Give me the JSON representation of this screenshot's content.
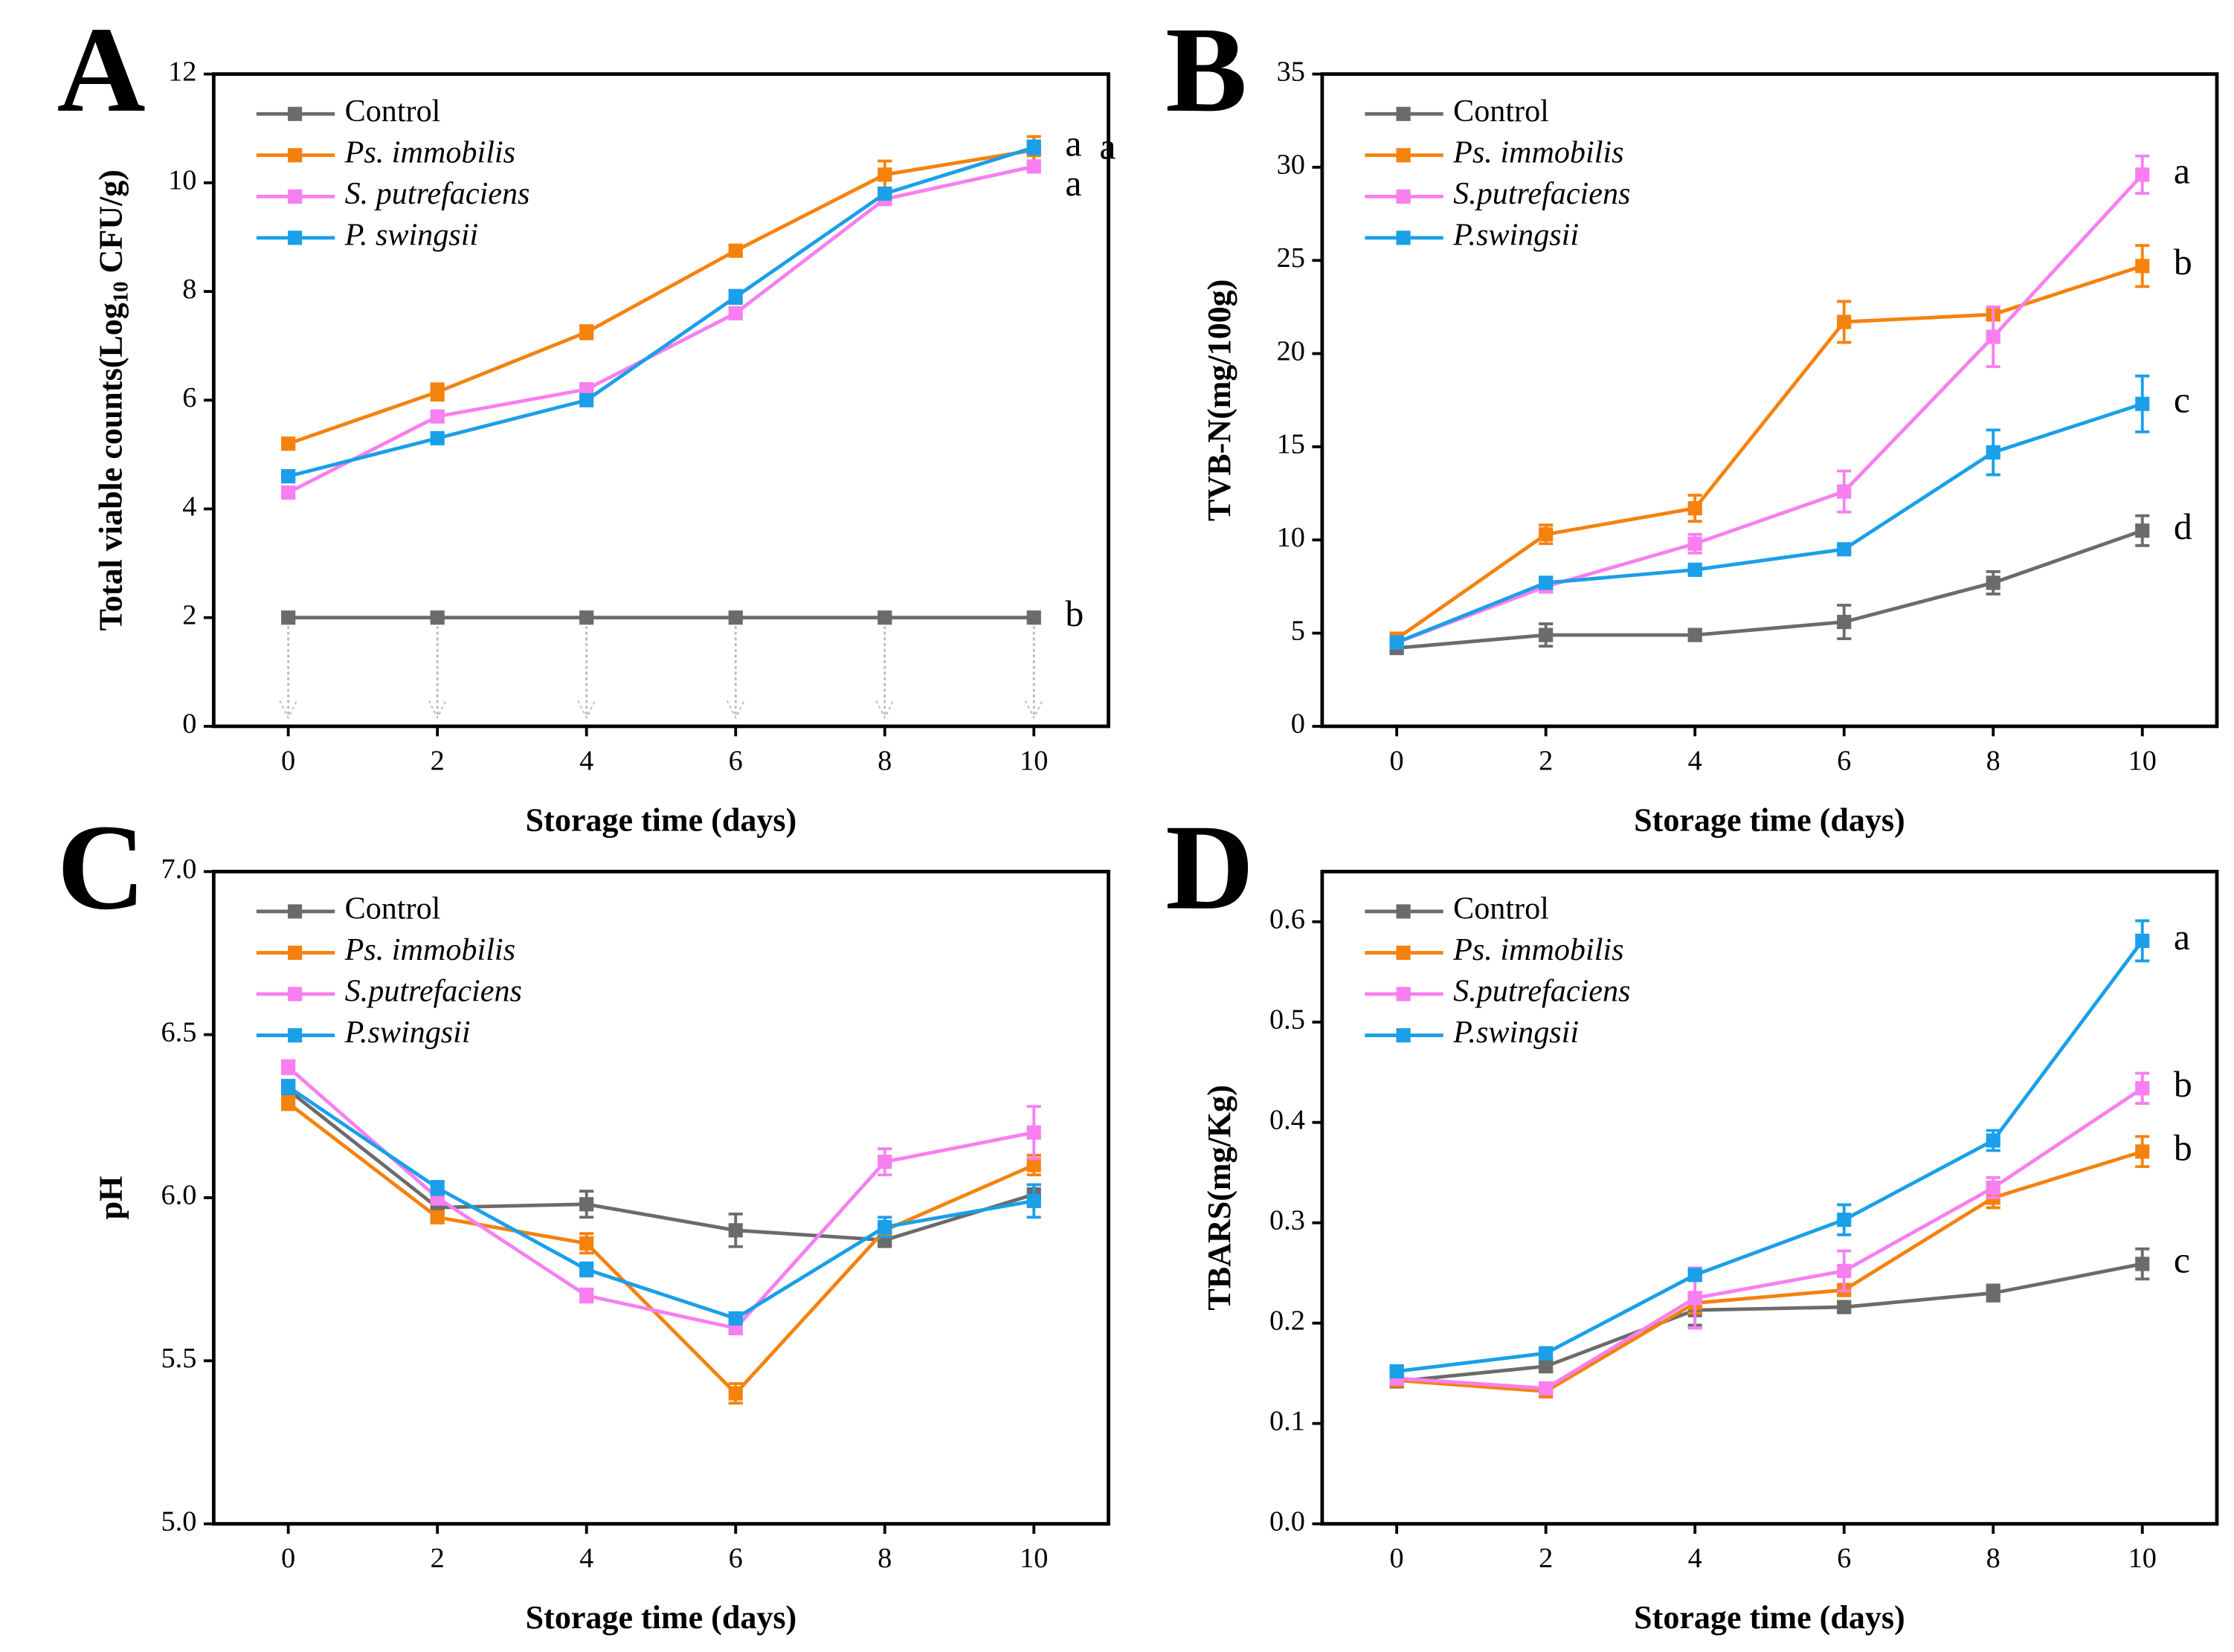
{
  "chart_data": [
    {
      "type": "line",
      "label": "A",
      "xlabel": "Storage time (days)",
      "ylabel": "Total viable counts(Log",
      "ylabel_sub": "10",
      "ylabel_end": " CFU/g)",
      "x": [
        0,
        2,
        4,
        6,
        8,
        10
      ],
      "xlim": [
        -1,
        11
      ],
      "xticks": [
        0,
        2,
        4,
        6,
        8,
        10
      ],
      "ylim": [
        0,
        12
      ],
      "yticks": [
        0,
        2,
        4,
        6,
        8,
        10,
        12
      ],
      "series": [
        {
          "name": "Control",
          "color": "#6b6b6b",
          "values": [
            2,
            2,
            2,
            2,
            2,
            2
          ],
          "errors": [
            0.02,
            0.02,
            0.02,
            0.02,
            0.02,
            0.02
          ],
          "letter": "b"
        },
        {
          "name": "Ps. immobilis",
          "color": "#f5820d",
          "values": [
            5.2,
            6.15,
            7.25,
            8.75,
            10.15,
            10.6
          ],
          "errors": [
            0.05,
            0.15,
            0.12,
            0.08,
            0.25,
            0.25
          ],
          "letter": "a"
        },
        {
          "name": "S. putrefaciens",
          "color": "#f77ff0",
          "values": [
            4.3,
            5.7,
            6.2,
            7.6,
            9.7,
            10.3
          ],
          "errors": [
            0.08,
            0.08,
            0.08,
            0.1,
            0.1,
            0.1
          ],
          "letter": "a"
        },
        {
          "name": "P. swingsii",
          "color": "#1a9fe8",
          "values": [
            4.6,
            5.3,
            6.0,
            7.9,
            9.8,
            10.65
          ],
          "errors": [
            0.05,
            0.05,
            0.05,
            0.12,
            0.1,
            0.12
          ],
          "letter": "a"
        }
      ]
    },
    {
      "type": "line",
      "label": "B",
      "xlabel": "Storage time (days)",
      "ylabel": "TVB-N(mg/100g)",
      "x": [
        0,
        2,
        4,
        6,
        8,
        10
      ],
      "xlim": [
        -1,
        11
      ],
      "xticks": [
        0,
        2,
        4,
        6,
        8,
        10
      ],
      "ylim": [
        0,
        35
      ],
      "yticks": [
        0,
        5,
        10,
        15,
        20,
        25,
        30,
        35
      ],
      "series": [
        {
          "name": "Control",
          "color": "#6b6b6b",
          "values": [
            4.2,
            4.9,
            4.9,
            5.6,
            7.7,
            10.5
          ],
          "errors": [
            0.2,
            0.6,
            0.3,
            0.9,
            0.6,
            0.8
          ],
          "letter": "d"
        },
        {
          "name": "Ps. immobilis",
          "color": "#f5820d",
          "values": [
            4.7,
            10.3,
            11.7,
            21.7,
            22.1,
            24.7
          ],
          "errors": [
            0.2,
            0.5,
            0.7,
            1.1,
            0.3,
            1.1
          ],
          "letter": "b"
        },
        {
          "name": "S.putrefaciens",
          "color": "#f77ff0",
          "values": [
            4.5,
            7.5,
            9.8,
            12.6,
            20.9,
            29.6
          ],
          "errors": [
            0.2,
            0.3,
            0.5,
            1.1,
            1.6,
            1.0
          ],
          "letter": "a"
        },
        {
          "name": "P.swingsii",
          "color": "#1a9fe8",
          "values": [
            4.5,
            7.7,
            8.4,
            9.5,
            14.7,
            17.3
          ],
          "errors": [
            0.2,
            0.3,
            0.2,
            0.2,
            1.2,
            1.5
          ],
          "letter": "c"
        }
      ]
    },
    {
      "type": "line",
      "label": "C",
      "xlabel": "Storage time (days)",
      "ylabel": "pH",
      "x": [
        0,
        2,
        4,
        6,
        8,
        10
      ],
      "xlim": [
        -1,
        11
      ],
      "xticks": [
        0,
        2,
        4,
        6,
        8,
        10
      ],
      "ylim": [
        5,
        7
      ],
      "yticks": [
        {
          "value": 5,
          "label": "5.0"
        },
        5.5,
        {
          "value": 6,
          "label": "6.0"
        },
        6.5,
        {
          "value": 7,
          "label": "7.0"
        }
      ],
      "series": [
        {
          "name": "Control",
          "color": "#6b6b6b",
          "values": [
            6.33,
            5.97,
            5.98,
            5.9,
            5.87,
            6.01
          ],
          "errors": [
            0.02,
            0.02,
            0.04,
            0.05,
            0.02,
            0.03
          ]
        },
        {
          "name": "Ps. immobilis",
          "color": "#f5820d",
          "values": [
            6.29,
            5.94,
            5.86,
            5.4,
            5.9,
            6.1
          ],
          "errors": [
            0.02,
            0.01,
            0.03,
            0.03,
            0.02,
            0.03
          ]
        },
        {
          "name": "S.putrefaciens",
          "color": "#f77ff0",
          "values": [
            6.4,
            6.0,
            5.7,
            5.6,
            6.11,
            6.2
          ],
          "errors": [
            0.02,
            0.02,
            0.02,
            0.01,
            0.04,
            0.08
          ]
        },
        {
          "name": "P.swingsii",
          "color": "#1a9fe8",
          "values": [
            6.34,
            6.03,
            5.78,
            5.63,
            5.91,
            5.99
          ],
          "errors": [
            0.02,
            0.02,
            0.02,
            0.01,
            0.03,
            0.05
          ]
        }
      ]
    },
    {
      "type": "line",
      "label": "D",
      "xlabel": "Storage time (days)",
      "ylabel": "TBARS(mg/Kg)",
      "x": [
        0,
        2,
        4,
        6,
        8,
        10
      ],
      "xlim": [
        -1,
        11
      ],
      "xticks": [
        0,
        2,
        4,
        6,
        8,
        10
      ],
      "ylim": [
        0,
        0.65
      ],
      "yticks": [
        {
          "value": 0,
          "label": "0.0"
        },
        0.1,
        0.2,
        0.3,
        0.4,
        0.5,
        0.6
      ],
      "series": [
        {
          "name": "Control",
          "color": "#6b6b6b",
          "values": [
            0.142,
            0.157,
            0.213,
            0.216,
            0.23,
            0.259
          ],
          "errors": [
            0.005,
            0.005,
            0.015,
            0.005,
            0.008,
            0.015
          ],
          "letter": "c"
        },
        {
          "name": "Ps. immobilis",
          "color": "#f5820d",
          "values": [
            0.143,
            0.132,
            0.22,
            0.233,
            0.325,
            0.371
          ],
          "errors": [
            0.005,
            0.005,
            0.01,
            0.005,
            0.01,
            0.015
          ],
          "letter": "b"
        },
        {
          "name": "S.putrefaciens",
          "color": "#f77ff0",
          "values": [
            0.145,
            0.135,
            0.225,
            0.252,
            0.335,
            0.434
          ],
          "errors": [
            0.005,
            0.005,
            0.03,
            0.02,
            0.01,
            0.015
          ],
          "letter": "b"
        },
        {
          "name": "P.swingsii",
          "color": "#1a9fe8",
          "values": [
            0.152,
            0.17,
            0.248,
            0.303,
            0.382,
            0.581
          ],
          "errors": [
            0.005,
            0.005,
            0.005,
            0.015,
            0.01,
            0.02
          ],
          "letter": "a"
        }
      ]
    }
  ]
}
